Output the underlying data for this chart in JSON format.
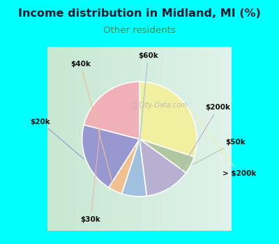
{
  "title": "Income distribution in Midland, MI (%)",
  "subtitle": "Other residents",
  "title_color": "#1a1a2e",
  "subtitle_color": "#2e8b57",
  "background_cyan": "#00ffff",
  "background_chart_left": "#c8e8d0",
  "background_chart_right": "#e8f5f0",
  "slices": [
    {
      "label": "> $200k",
      "value": 30,
      "color": "#f0f0a0"
    },
    {
      "label": "$50k",
      "value": 5,
      "color": "#b0c8a0"
    },
    {
      "label": "$200k",
      "value": 13,
      "color": "#b8b0d0"
    },
    {
      "label": "$60k",
      "value": 7,
      "color": "#a0c0e0"
    },
    {
      "label": "$40k",
      "value": 4,
      "color": "#f0c090"
    },
    {
      "label": "$20k",
      "value": 20,
      "color": "#9898d0"
    },
    {
      "label": "$30k",
      "value": 21,
      "color": "#f0b0b8"
    }
  ],
  "figsize": [
    4.0,
    3.5
  ],
  "dpi": 100
}
